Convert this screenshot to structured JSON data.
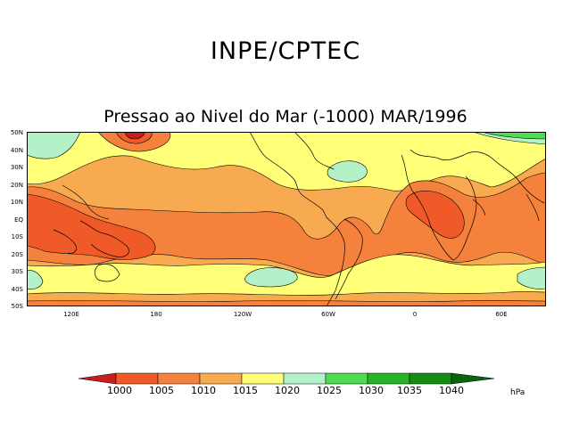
{
  "header": {
    "title": "INPE/CPTEC",
    "subtitle": "Pressao ao Nivel do Mar (-1000) MAR/1996"
  },
  "map": {
    "lat_labels": [
      "50N",
      "40N",
      "30N",
      "20N",
      "10N",
      "EQ",
      "10S",
      "20S",
      "30S",
      "40S",
      "50S"
    ],
    "lon_labels": [
      "120E",
      "180",
      "120W",
      "60W",
      "0",
      "60E"
    ]
  },
  "legend": {
    "levels": [
      "1000",
      "1005",
      "1010",
      "1015",
      "1020",
      "1025",
      "1030",
      "1035",
      "1040"
    ],
    "units": "hPa",
    "colors": {
      "lt1000": "#c81e1e",
      "c1000_1005": "#f05a28",
      "c1005_1010": "#f5823c",
      "c1010_1015": "#f8aa50",
      "c1015_1020": "#ffff78",
      "c1020_1025": "#b4f0c8",
      "c1025_1030": "#50dc50",
      "c1030_1035": "#28b428",
      "c1035_1040": "#148c14",
      "gt1040": "#0a640a"
    }
  }
}
